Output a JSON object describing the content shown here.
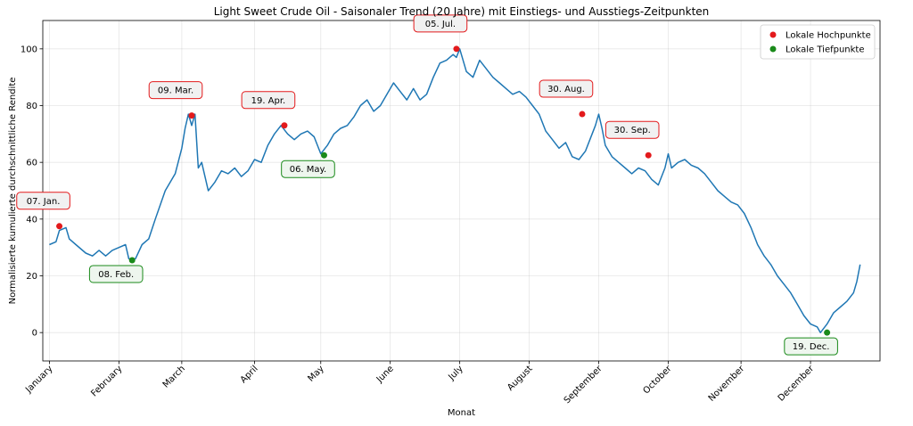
{
  "chart_data": {
    "type": "line",
    "title": "Light Sweet Crude Oil - Saisonaler Trend (20 Jahre) mit Einstiegs- und Ausstiegs-Zeitpunkten",
    "xlabel": "Monat",
    "ylabel": "Normalisierte kumulierte durchschnittliche Rendite",
    "xlim": [
      -2,
      251
    ],
    "ylim": [
      -10,
      110
    ],
    "yticks": [
      0,
      20,
      40,
      60,
      80,
      100
    ],
    "grid": true,
    "legend_position": "top-right",
    "month_ticks": [
      {
        "label": "January",
        "x": 0
      },
      {
        "label": "February",
        "x": 21
      },
      {
        "label": "March",
        "x": 40
      },
      {
        "label": "April",
        "x": 62
      },
      {
        "label": "May",
        "x": 82
      },
      {
        "label": "June",
        "x": 103
      },
      {
        "label": "July",
        "x": 124
      },
      {
        "label": "August",
        "x": 145
      },
      {
        "label": "September",
        "x": 166
      },
      {
        "label": "October",
        "x": 187
      },
      {
        "label": "November",
        "x": 209
      },
      {
        "label": "December",
        "x": 230
      }
    ],
    "series": [
      {
        "name": "",
        "color": "#1f77b4",
        "knots": [
          [
            0,
            31
          ],
          [
            2,
            32
          ],
          [
            3,
            36
          ],
          [
            5,
            37
          ],
          [
            6,
            33
          ],
          [
            8,
            31
          ],
          [
            11,
            28
          ],
          [
            13,
            27
          ],
          [
            15,
            29
          ],
          [
            17,
            27
          ],
          [
            19,
            29
          ],
          [
            21,
            30
          ],
          [
            23,
            31
          ],
          [
            24,
            26
          ],
          [
            26,
            26
          ],
          [
            28,
            31
          ],
          [
            30,
            33
          ],
          [
            32,
            40
          ],
          [
            35,
            50
          ],
          [
            38,
            56
          ],
          [
            40,
            65
          ],
          [
            41,
            72
          ],
          [
            42,
            77
          ],
          [
            43,
            73
          ],
          [
            44,
            77
          ],
          [
            45,
            58
          ],
          [
            46,
            60
          ],
          [
            47,
            55
          ],
          [
            48,
            50
          ],
          [
            50,
            53
          ],
          [
            52,
            57
          ],
          [
            54,
            56
          ],
          [
            56,
            58
          ],
          [
            58,
            55
          ],
          [
            60,
            57
          ],
          [
            62,
            61
          ],
          [
            64,
            60
          ],
          [
            66,
            66
          ],
          [
            68,
            70
          ],
          [
            70,
            73
          ],
          [
            72,
            70
          ],
          [
            74,
            68
          ],
          [
            76,
            70
          ],
          [
            78,
            71
          ],
          [
            80,
            69
          ],
          [
            82,
            63
          ],
          [
            84,
            66
          ],
          [
            86,
            70
          ],
          [
            88,
            72
          ],
          [
            90,
            73
          ],
          [
            92,
            76
          ],
          [
            94,
            80
          ],
          [
            96,
            82
          ],
          [
            98,
            78
          ],
          [
            100,
            80
          ],
          [
            102,
            84
          ],
          [
            104,
            88
          ],
          [
            106,
            85
          ],
          [
            108,
            82
          ],
          [
            110,
            86
          ],
          [
            112,
            82
          ],
          [
            114,
            84
          ],
          [
            116,
            90
          ],
          [
            118,
            95
          ],
          [
            120,
            96
          ],
          [
            122,
            98
          ],
          [
            123,
            97
          ],
          [
            124,
            100
          ],
          [
            126,
            92
          ],
          [
            128,
            90
          ],
          [
            130,
            96
          ],
          [
            132,
            93
          ],
          [
            134,
            90
          ],
          [
            136,
            88
          ],
          [
            138,
            86
          ],
          [
            140,
            84
          ],
          [
            142,
            85
          ],
          [
            144,
            83
          ],
          [
            146,
            80
          ],
          [
            148,
            77
          ],
          [
            150,
            71
          ],
          [
            152,
            68
          ],
          [
            154,
            65
          ],
          [
            156,
            67
          ],
          [
            158,
            62
          ],
          [
            160,
            61
          ],
          [
            162,
            64
          ],
          [
            164,
            70
          ],
          [
            165,
            73
          ],
          [
            166,
            77
          ],
          [
            167,
            72
          ],
          [
            168,
            66
          ],
          [
            170,
            62
          ],
          [
            172,
            60
          ],
          [
            174,
            58
          ],
          [
            176,
            56
          ],
          [
            178,
            58
          ],
          [
            180,
            57
          ],
          [
            182,
            54
          ],
          [
            184,
            52
          ],
          [
            186,
            58
          ],
          [
            187,
            63
          ],
          [
            188,
            58
          ],
          [
            190,
            60
          ],
          [
            192,
            61
          ],
          [
            194,
            59
          ],
          [
            196,
            58
          ],
          [
            198,
            56
          ],
          [
            200,
            53
          ],
          [
            202,
            50
          ],
          [
            204,
            48
          ],
          [
            206,
            46
          ],
          [
            208,
            45
          ],
          [
            210,
            42
          ],
          [
            212,
            37
          ],
          [
            214,
            31
          ],
          [
            216,
            27
          ],
          [
            218,
            24
          ],
          [
            220,
            20
          ],
          [
            222,
            17
          ],
          [
            224,
            14
          ],
          [
            226,
            10
          ],
          [
            228,
            6
          ],
          [
            230,
            3
          ],
          [
            232,
            2
          ],
          [
            233,
            0
          ],
          [
            235,
            3
          ],
          [
            237,
            7
          ],
          [
            239,
            9
          ],
          [
            241,
            11
          ],
          [
            243,
            14
          ],
          [
            244,
            18
          ],
          [
            245,
            24
          ]
        ]
      }
    ],
    "local_highs": {
      "legend": "Lokale Hochpunkte",
      "color": "#e31a1c",
      "points": [
        {
          "x": 3,
          "y": 37.5,
          "label": "07. Jan."
        },
        {
          "x": 43,
          "y": 76.5,
          "label": "09. Mar."
        },
        {
          "x": 71,
          "y": 73.0,
          "label": "19. Apr."
        },
        {
          "x": 123,
          "y": 100.0,
          "label": "05. Jul."
        },
        {
          "x": 161,
          "y": 77.0,
          "label": "30. Aug."
        },
        {
          "x": 181,
          "y": 62.5,
          "label": "30. Sep."
        }
      ]
    },
    "local_lows": {
      "legend": "Lokale Tiefpunkte",
      "color": "#1a8a1a",
      "points": [
        {
          "x": 25,
          "y": 25.5,
          "label": "08. Feb."
        },
        {
          "x": 83,
          "y": 62.5,
          "label": "06. May."
        },
        {
          "x": 235,
          "y": 0.0,
          "label": "19. Dec."
        }
      ]
    }
  }
}
